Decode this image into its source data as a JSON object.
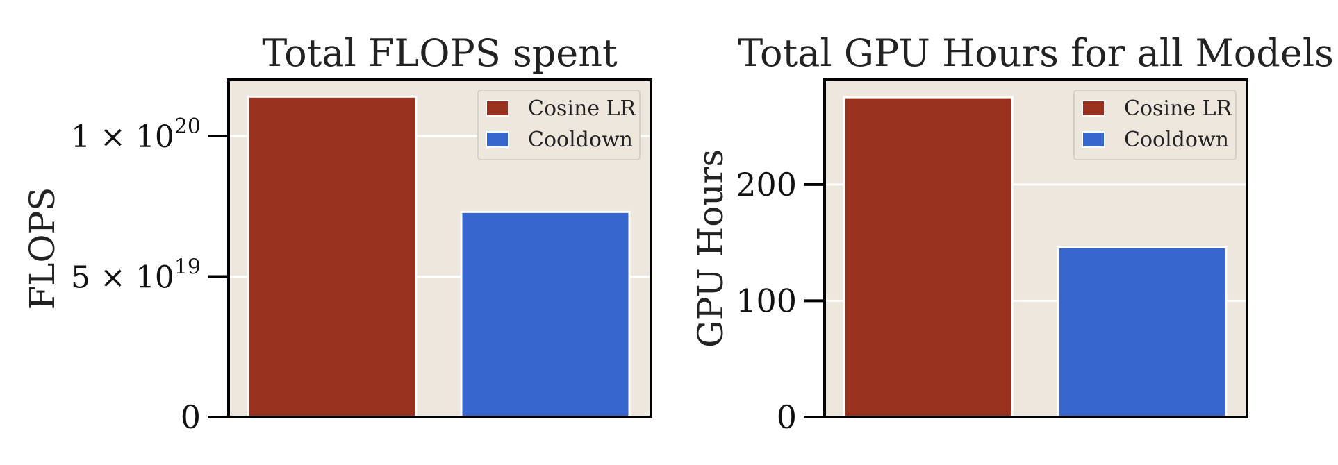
{
  "chart_data": [
    {
      "type": "bar",
      "title": "Total FLOPS spent",
      "xlabel": "",
      "ylabel": "FLOPS",
      "categories": [
        "Cosine LR",
        "Cooldown"
      ],
      "values": [
        1.14e+20,
        7.3e+19
      ],
      "colors": [
        "#98321e",
        "#3866cf"
      ],
      "ylim": [
        0,
        1.2e+20
      ],
      "yticks": [
        {
          "value": 0,
          "mantissa": "0",
          "exponent": ""
        },
        {
          "value": 5e+19,
          "mantissa": "5 × 10",
          "exponent": "19"
        },
        {
          "value": 1e+20,
          "mantissa": "1 × 10",
          "exponent": "20"
        }
      ],
      "legend": [
        "Cosine LR",
        "Cooldown"
      ],
      "legend_position": "top-right",
      "grid": true
    },
    {
      "type": "bar",
      "title": "Total GPU Hours for all Models",
      "xlabel": "",
      "ylabel": "GPU Hours",
      "categories": [
        "Cosine LR",
        "Cooldown"
      ],
      "values": [
        275,
        146
      ],
      "colors": [
        "#98321e",
        "#3866cf"
      ],
      "ylim": [
        0,
        290
      ],
      "yticks": [
        {
          "value": 0,
          "mantissa": "0",
          "exponent": ""
        },
        {
          "value": 100,
          "mantissa": "100",
          "exponent": ""
        },
        {
          "value": 200,
          "mantissa": "200",
          "exponent": ""
        }
      ],
      "legend": [
        "Cosine LR",
        "Cooldown"
      ],
      "legend_position": "top-right",
      "grid": true
    }
  ],
  "colors": {
    "background": "#ede7dd",
    "grid": "#ffffff",
    "frame": "#000000"
  }
}
